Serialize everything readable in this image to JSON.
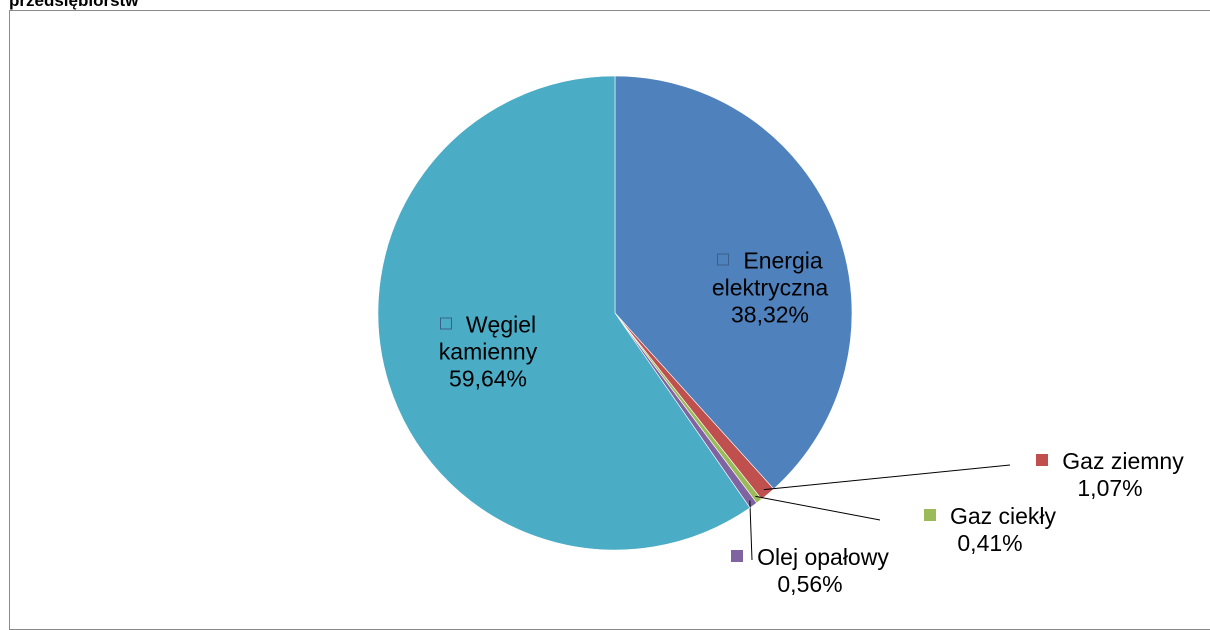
{
  "chart_data": {
    "type": "pie",
    "title": "przedsiębiorstw",
    "categories": [
      "Energia elektryczna",
      "Gaz ziemny",
      "Gaz ciekły",
      "Olej opałowy",
      "Węgiel kamienny"
    ],
    "values": [
      38.32,
      1.07,
      0.41,
      0.56,
      59.64
    ],
    "value_labels": [
      "38,32%",
      "1,07%",
      "0,41%",
      "0,56%",
      "59,64%"
    ],
    "colors": [
      "#4f81bd",
      "#c0504d",
      "#9bbb59",
      "#8064a2",
      "#4bacc6"
    ]
  }
}
